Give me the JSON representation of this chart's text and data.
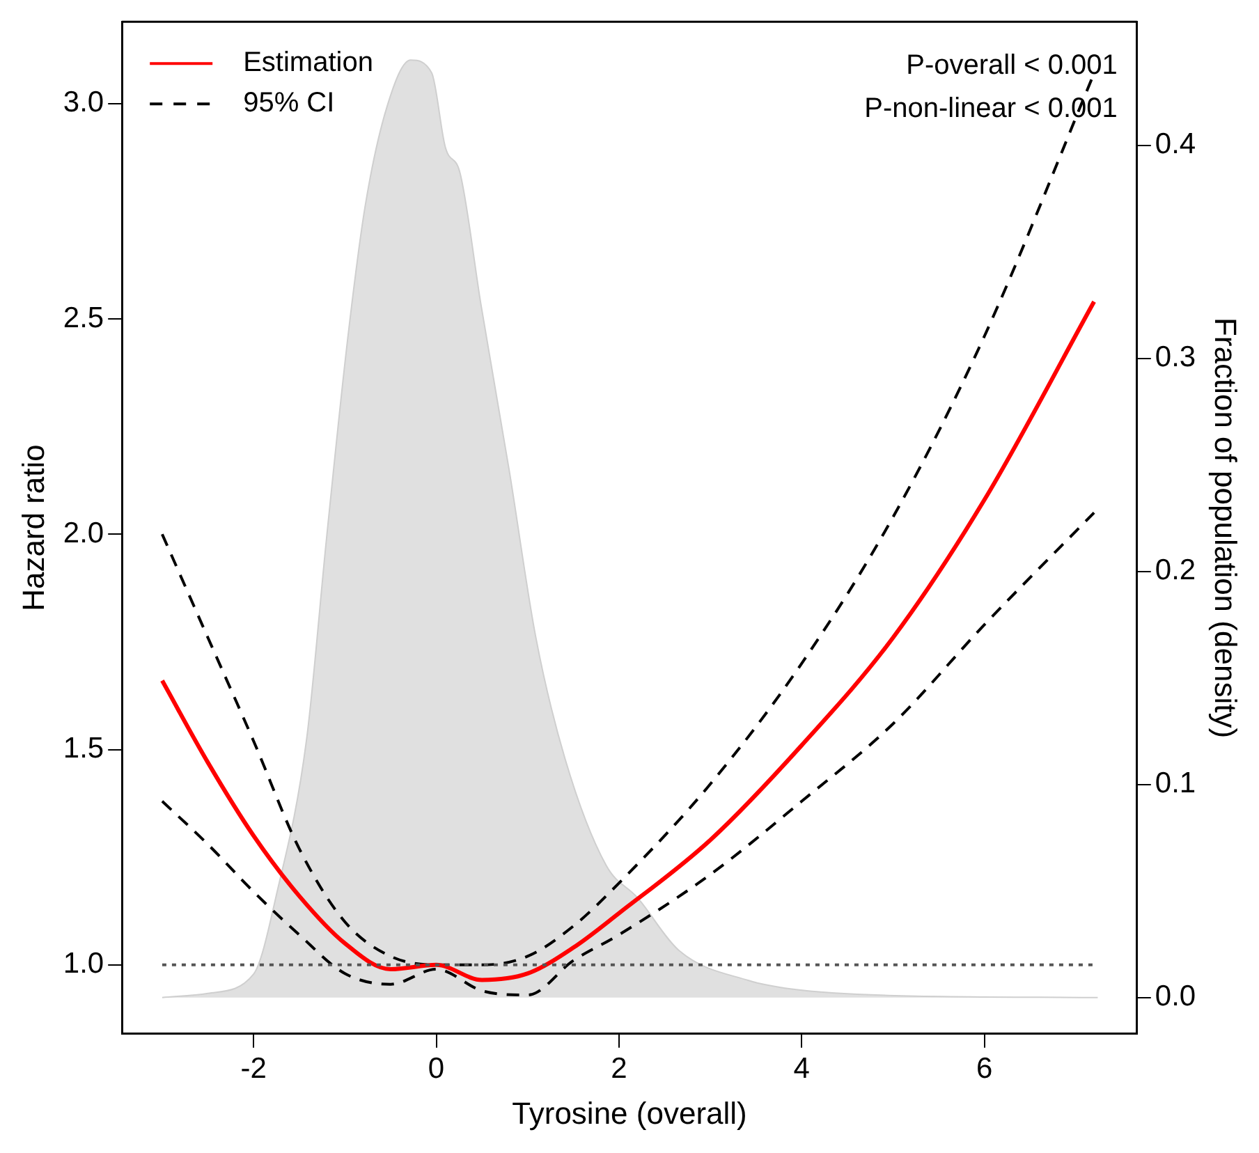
{
  "chart_data": {
    "type": "line",
    "xlabel": "Tyrosine (overall)",
    "ylabel": "Hazard ratio",
    "y2label": "Fraction of population (density)",
    "x": [
      -3,
      -2.5,
      -2,
      -1.5,
      -1,
      -0.5,
      0,
      0.5,
      1,
      1.5,
      2,
      3,
      4,
      5,
      6,
      7.2
    ],
    "series": [
      {
        "type": "area",
        "axis": "y2",
        "color": "#e0e0e0",
        "x": [
          -3,
          -2.5,
          -2,
          -1.74,
          -1.42,
          -1.2,
          -0.97,
          -0.78,
          -0.54,
          -0.28,
          -0.05,
          0.1,
          0.26,
          0.49,
          0.8,
          1.09,
          1.41,
          1.86,
          2.2,
          2.66,
          3.42,
          3.89,
          4.95,
          7.24
        ],
        "values": [
          0,
          0.002,
          0.011,
          0.05,
          0.121,
          0.216,
          0.309,
          0.371,
          0.418,
          0.44,
          0.434,
          0.399,
          0.387,
          0.325,
          0.247,
          0.169,
          0.112,
          0.062,
          0.047,
          0.022,
          0.008,
          0.004,
          0.001,
          0
        ]
      },
      {
        "name": "Estimation",
        "color": "#ff0000",
        "line_style": "solid",
        "values": [
          1.66,
          1.47,
          1.3,
          1.16,
          1.05,
          0.99,
          1.0,
          0.965,
          0.98,
          1.04,
          1.12,
          1.29,
          1.51,
          1.76,
          2.08,
          2.54
        ]
      },
      {
        "name": "95% CI",
        "color": "#000000",
        "line_style": "dashed",
        "values": [
          2.0,
          1.76,
          1.52,
          1.27,
          1.1,
          1.02,
          1.0,
          1.0,
          1.02,
          1.09,
          1.19,
          1.42,
          1.7,
          2.04,
          2.46,
          3.07
        ]
      },
      {
        "color": "#000000",
        "line_style": "dashed",
        "values": [
          1.38,
          1.28,
          1.17,
          1.07,
          0.98,
          0.955,
          0.99,
          0.94,
          0.93,
          1.01,
          1.07,
          1.21,
          1.38,
          1.56,
          1.79,
          2.05
        ]
      }
    ],
    "xlim": [
      -3.44,
      7.67
    ],
    "xticks": [
      -2,
      0,
      2,
      4,
      6
    ],
    "ylim": [
      0.84,
      3.19
    ],
    "yticks": [
      {
        "value": 1,
        "label": "1.0"
      },
      1.5,
      {
        "value": 2,
        "label": "2.0"
      },
      2.5,
      {
        "value": 3,
        "label": "3.0"
      }
    ],
    "y2lim": [
      -0.017,
      0.458
    ],
    "y2ticks": [
      {
        "value": 0,
        "label": "0.0"
      },
      0.1,
      0.2,
      0.3,
      0.4
    ],
    "ref_lines": [
      {
        "axis": "y",
        "value": 1,
        "color": "#555555",
        "line_style": "dotted"
      }
    ],
    "annotations": [
      "P-overall < 0.001",
      "P-non-linear < 0.001"
    ],
    "legend": "top left",
    "grid": false,
    "marker": "none"
  }
}
